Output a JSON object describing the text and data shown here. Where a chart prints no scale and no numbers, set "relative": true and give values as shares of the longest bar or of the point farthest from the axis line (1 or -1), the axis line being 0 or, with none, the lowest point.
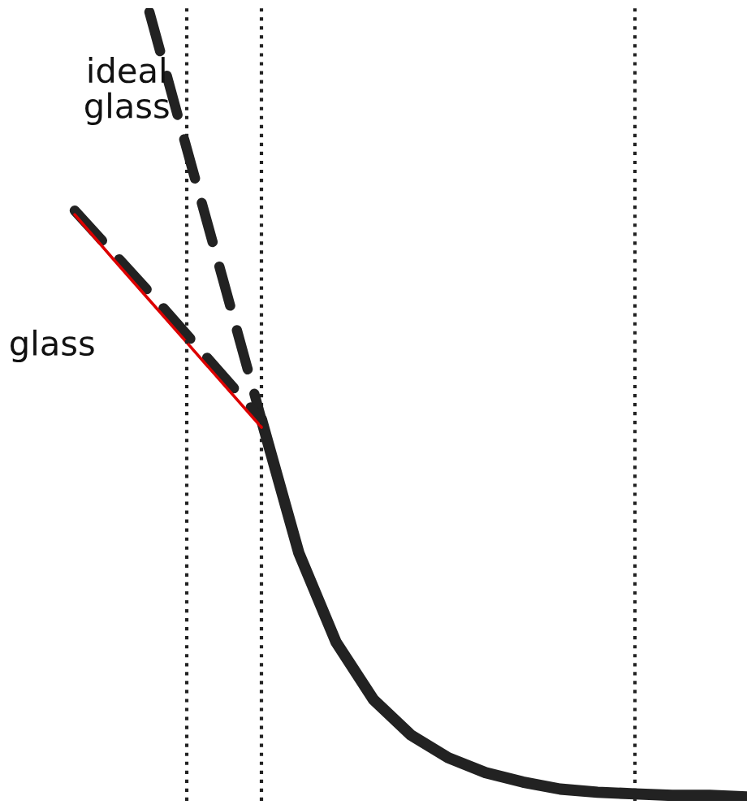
{
  "chart_data": {
    "type": "line",
    "relative": true,
    "categories": [
      null,
      null,
      null,
      null,
      null,
      null,
      null,
      null,
      null,
      null,
      null,
      null,
      null,
      null,
      null,
      null,
      null,
      null,
      null,
      null,
      null
    ],
    "series": [
      {
        "name": null,
        "color": "#222222",
        "line_style": "solid",
        "values": [
          null,
          null,
          null,
          null,
          null,
          null,
          null,
          0.481,
          0.311,
          0.197,
          0.124,
          0.079,
          0.05,
          0.031,
          0.019,
          0.01,
          0.006,
          0.004,
          0.002,
          0.002,
          0
        ]
      },
      {
        "name": "ideal\nglass",
        "color": "#222222",
        "line_style": "dashed",
        "values": [
          null,
          null,
          null,
          null,
          1.0,
          0.826,
          0.654,
          0.481,
          null,
          null,
          null,
          null,
          null,
          null,
          null,
          null,
          null,
          null,
          null,
          null,
          null
        ]
      },
      {
        "name": "glass",
        "color": "#222222",
        "line_style": "dashed",
        "values": [
          null,
          null,
          0.747,
          0.695,
          0.643,
          0.589,
          0.535,
          0.481,
          null,
          null,
          null,
          null,
          null,
          null,
          null,
          null,
          null,
          null,
          null,
          null,
          null
        ]
      },
      {
        "name": null,
        "color": "#dd0000",
        "line_style": "solid",
        "values": [
          null,
          null,
          0.742,
          0.687,
          0.633,
          0.579,
          0.525,
          0.471,
          null,
          null,
          null,
          null,
          null,
          null,
          null,
          null,
          null,
          null,
          null,
          null,
          null
        ]
      }
    ],
    "legend": false,
    "grid": "x",
    "marker": "none"
  }
}
